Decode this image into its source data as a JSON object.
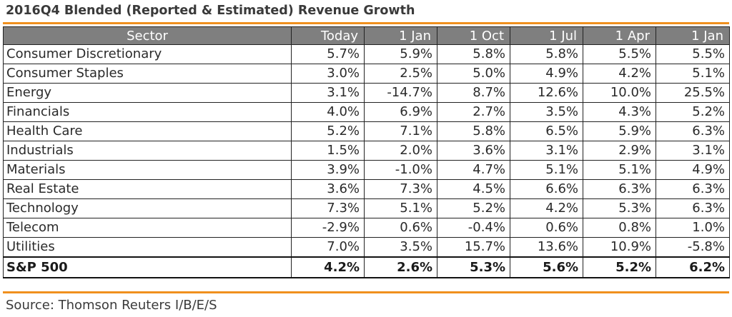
{
  "title": "2016Q4 Blended (Reported & Estimated) Revenue Growth",
  "columns": [
    "Sector",
    "Today",
    "1 Jan",
    "1 Oct",
    "1 Jul",
    "1 Apr",
    "1 Jan"
  ],
  "rows": [
    {
      "sector": "Consumer Discretionary",
      "values": [
        "5.7%",
        "5.9%",
        "5.8%",
        "5.8%",
        "5.5%",
        "5.5%"
      ]
    },
    {
      "sector": "Consumer Staples",
      "values": [
        "3.0%",
        "2.5%",
        "5.0%",
        "4.9%",
        "4.2%",
        "5.1%"
      ]
    },
    {
      "sector": "Energy",
      "values": [
        "3.1%",
        "-14.7%",
        "8.7%",
        "12.6%",
        "10.0%",
        "25.5%"
      ]
    },
    {
      "sector": "Financials",
      "values": [
        "4.0%",
        "6.9%",
        "2.7%",
        "3.5%",
        "4.3%",
        "5.2%"
      ]
    },
    {
      "sector": "Health Care",
      "values": [
        "5.2%",
        "7.1%",
        "5.8%",
        "6.5%",
        "5.9%",
        "6.3%"
      ]
    },
    {
      "sector": "Industrials",
      "values": [
        "1.5%",
        "2.0%",
        "3.6%",
        "3.1%",
        "2.9%",
        "3.1%"
      ]
    },
    {
      "sector": "Materials",
      "values": [
        "3.9%",
        "-1.0%",
        "4.7%",
        "5.1%",
        "5.1%",
        "4.9%"
      ]
    },
    {
      "sector": "Real Estate",
      "values": [
        "3.6%",
        "7.3%",
        "4.5%",
        "6.6%",
        "6.3%",
        "6.3%"
      ]
    },
    {
      "sector": "Technology",
      "values": [
        "7.3%",
        "5.1%",
        "5.2%",
        "4.2%",
        "5.3%",
        "6.3%"
      ]
    },
    {
      "sector": "Telecom",
      "values": [
        "-2.9%",
        "0.6%",
        "-0.4%",
        "0.6%",
        "0.8%",
        "1.0%"
      ]
    },
    {
      "sector": "Utilities",
      "values": [
        "7.0%",
        "3.5%",
        "15.7%",
        "13.6%",
        "10.9%",
        "-5.8%"
      ]
    }
  ],
  "total": {
    "sector": "S&P 500",
    "values": [
      "4.2%",
      "2.6%",
      "5.3%",
      "5.6%",
      "5.2%",
      "6.2%"
    ]
  },
  "source": "Source: Thomson Reuters I/B/E/S",
  "colors": {
    "accent_rule": "#f0901e",
    "header_bg": "#7f7f7f",
    "header_text": "#ffffff",
    "grid": "#222222"
  }
}
